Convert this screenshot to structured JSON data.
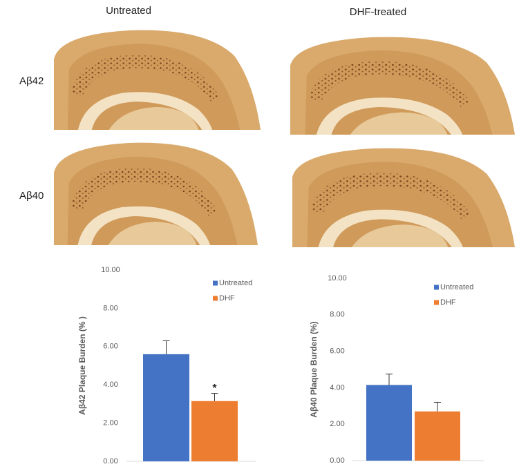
{
  "column_labels": [
    "Untreated",
    "DHF-treated"
  ],
  "row_labels": [
    "Aβ42",
    "Aβ40"
  ],
  "chart_data": [
    {
      "type": "bar",
      "ylabel": "Aβ42 Plaque Burden (% )",
      "categories": [
        null
      ],
      "series": [
        {
          "name": "Untreated",
          "color": "#4472c4",
          "values": [
            5.6
          ],
          "errors": [
            0.7
          ]
        },
        {
          "name": "DHF",
          "color": "#ed7d31",
          "values": [
            3.15
          ],
          "errors": [
            0.4
          ]
        }
      ],
      "annotation": "*",
      "ylim": [
        0,
        10
      ],
      "yticks": [
        {
          "value": 0,
          "label": "0.00"
        },
        {
          "value": 2,
          "label": "2.00"
        },
        {
          "value": 4,
          "label": "4.00"
        },
        {
          "value": 6,
          "label": "6.00"
        },
        {
          "value": 8,
          "label": "8.00"
        },
        {
          "value": 10,
          "label": "10.00"
        }
      ]
    },
    {
      "type": "bar",
      "ylabel": "Aβ40 Plaque Burden (%)",
      "categories": [
        null
      ],
      "series": [
        {
          "name": "Untreated",
          "color": "#4472c4",
          "values": [
            4.15
          ],
          "errors": [
            0.6
          ]
        },
        {
          "name": "DHF",
          "color": "#ed7d31",
          "values": [
            2.7
          ],
          "errors": [
            0.5
          ]
        }
      ],
      "ylim": [
        0,
        10
      ],
      "yticks": [
        {
          "value": 0,
          "label": "0.00"
        },
        {
          "value": 2,
          "label": "2.00"
        },
        {
          "value": 4,
          "label": "4.00"
        },
        {
          "value": 6,
          "label": "6.00"
        },
        {
          "value": 8,
          "label": "8.00"
        },
        {
          "value": 10,
          "label": "10.00"
        }
      ]
    }
  ]
}
